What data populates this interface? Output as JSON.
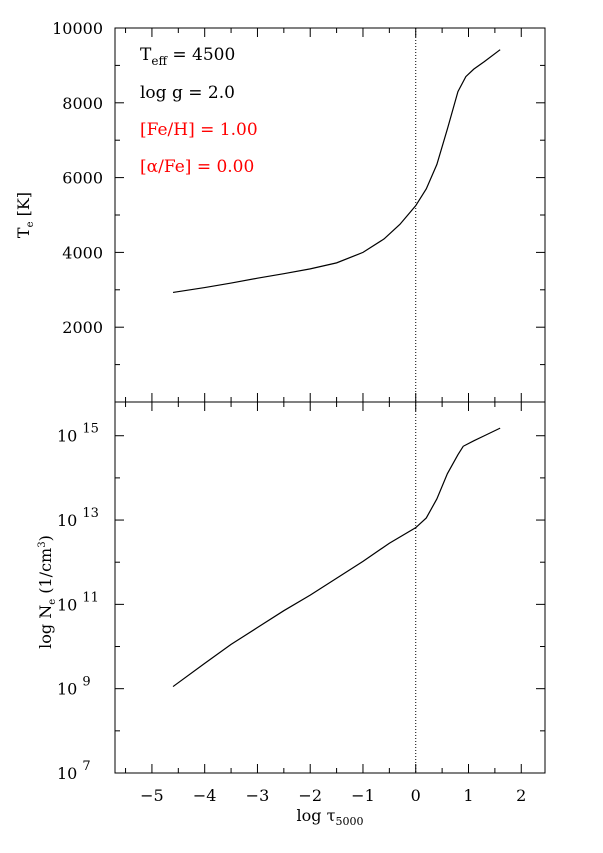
{
  "chart_data": [
    {
      "type": "line",
      "panel": "top",
      "title": "",
      "xlabel": "",
      "ylabel": "T_e [K]",
      "ylabel_main": "T",
      "ylabel_sub": "e",
      "ylabel_rest": " [K]",
      "xlim": [
        -5.7,
        2.45
      ],
      "ylim": [
        0,
        10000
      ],
      "yticks": [
        2000,
        4000,
        6000,
        8000,
        10000
      ],
      "ytick_labels": [
        "2000",
        "4000",
        "6000",
        "8000",
        "10000"
      ],
      "grid": false,
      "vline_x": 0,
      "annotations": [
        {
          "main": "T",
          "sub": "eff",
          "rest": " = 4500",
          "color": "#000000"
        },
        {
          "main": "log g = 2.0",
          "sub": "",
          "rest": "",
          "color": "#000000"
        },
        {
          "main": "[Fe/H] =  1.00",
          "sub": "",
          "rest": "",
          "color": "#ff0000"
        },
        {
          "main": "[",
          "alpha": "α",
          "rest": "/Fe] = 0.00",
          "color": "#ff0000"
        }
      ],
      "series": [
        {
          "x": [
            -4.6,
            -4.0,
            -3.5,
            -3.0,
            -2.5,
            -2.0,
            -1.5,
            -1.0,
            -0.6,
            -0.3,
            0.0,
            0.2,
            0.4,
            0.6,
            0.8,
            0.95,
            1.1,
            1.3,
            1.6
          ],
          "y": [
            2930,
            3060,
            3180,
            3310,
            3430,
            3560,
            3720,
            4000,
            4360,
            4750,
            5250,
            5700,
            6350,
            7300,
            8300,
            8700,
            8900,
            9100,
            9420
          ]
        }
      ]
    },
    {
      "type": "line",
      "panel": "bottom",
      "title": "",
      "xlabel": "log τ5000",
      "xlabel_main": "log τ",
      "xlabel_sub": "5000",
      "ylabel": "log N_e (1/cm^3)",
      "ylabel_main": "log N",
      "ylabel_sub": "e",
      "ylabel_rest": " (1/cm",
      "ylabel_sup": "3",
      "ylabel_end": ")",
      "xlim": [
        -5.7,
        2.45
      ],
      "ylim": [
        7,
        15.8
      ],
      "xticks": [
        -5,
        -4,
        -3,
        -2,
        -1,
        0,
        1,
        2
      ],
      "xtick_labels": [
        "−5",
        "−4",
        "−3",
        "−2",
        "−1",
        "0",
        "1",
        "2"
      ],
      "yticks": [
        7,
        9,
        11,
        13,
        15
      ],
      "ytick_bases": [
        "10",
        "10",
        "10",
        "10",
        "10"
      ],
      "ytick_exps": [
        "7",
        "9",
        "11",
        "13",
        "15"
      ],
      "grid": false,
      "vline_x": 0,
      "series": [
        {
          "x": [
            -4.6,
            -4.0,
            -3.5,
            -3.0,
            -2.5,
            -2.0,
            -1.5,
            -1.0,
            -0.5,
            0.0,
            0.2,
            0.4,
            0.6,
            0.8,
            0.9,
            1.1,
            1.3,
            1.6
          ],
          "y": [
            9.05,
            9.6,
            10.05,
            10.45,
            10.85,
            11.22,
            11.62,
            12.02,
            12.45,
            12.82,
            13.05,
            13.5,
            14.1,
            14.55,
            14.75,
            14.88,
            15.0,
            15.18
          ]
        }
      ]
    }
  ]
}
